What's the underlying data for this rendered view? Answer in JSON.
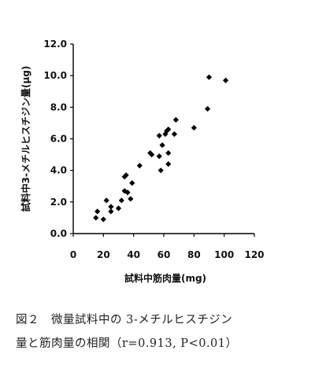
{
  "chart_data": {
    "type": "scatter",
    "xlabel": "試料中筋肉量(mg)",
    "ylabel": "試料中3-メチルヒスチジン量(μg)",
    "xlim": [
      0,
      120
    ],
    "ylim": [
      0.0,
      12.0
    ],
    "x_ticks": [
      "0",
      "20",
      "40",
      "60",
      "80",
      "100",
      "120"
    ],
    "y_ticks": [
      "0.0",
      "2.0",
      "4.0",
      "6.0",
      "8.0",
      "10.0",
      "12.0"
    ],
    "points": [
      {
        "x": 15,
        "y": 1.0
      },
      {
        "x": 16,
        "y": 1.4
      },
      {
        "x": 20,
        "y": 0.9
      },
      {
        "x": 22,
        "y": 2.1
      },
      {
        "x": 25,
        "y": 1.4
      },
      {
        "x": 25,
        "y": 1.7
      },
      {
        "x": 30,
        "y": 1.6
      },
      {
        "x": 32,
        "y": 2.1
      },
      {
        "x": 34,
        "y": 2.7
      },
      {
        "x": 34,
        "y": 3.6
      },
      {
        "x": 35,
        "y": 3.7
      },
      {
        "x": 36,
        "y": 2.6
      },
      {
        "x": 38,
        "y": 2.2
      },
      {
        "x": 39,
        "y": 3.2
      },
      {
        "x": 44,
        "y": 4.3
      },
      {
        "x": 51,
        "y": 5.1
      },
      {
        "x": 52,
        "y": 5.0
      },
      {
        "x": 57,
        "y": 4.9
      },
      {
        "x": 57,
        "y": 6.2
      },
      {
        "x": 58,
        "y": 4.0
      },
      {
        "x": 59,
        "y": 5.6
      },
      {
        "x": 61,
        "y": 6.3
      },
      {
        "x": 62,
        "y": 6.5
      },
      {
        "x": 63,
        "y": 5.1
      },
      {
        "x": 63,
        "y": 6.6
      },
      {
        "x": 63,
        "y": 4.4
      },
      {
        "x": 67,
        "y": 6.3
      },
      {
        "x": 68,
        "y": 7.2
      },
      {
        "x": 80,
        "y": 6.7
      },
      {
        "x": 89,
        "y": 7.9
      },
      {
        "x": 90,
        "y": 9.9
      },
      {
        "x": 101,
        "y": 9.7
      }
    ]
  },
  "caption": {
    "line1": "図２　微量試料中の 3-メチルヒスチジン",
    "line2": "量と筋肉量の相関（r=0.913, P<0.01）"
  }
}
